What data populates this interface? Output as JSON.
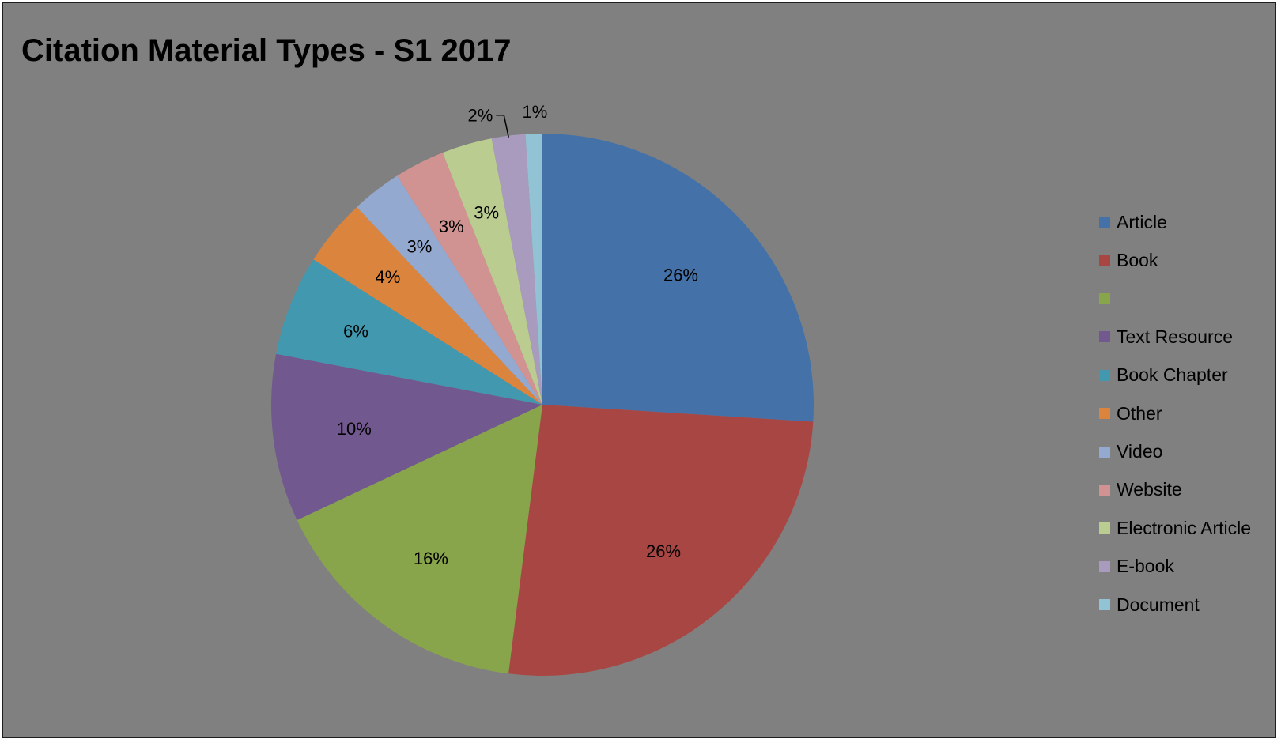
{
  "chart_data": {
    "type": "pie",
    "title": "Citation Material Types - S1 2017",
    "legend_position": "right",
    "start_angle": "12 o'clock, clockwise",
    "slices": [
      {
        "name": "Article",
        "value": 26,
        "label": "26%",
        "color": "#4472A8"
      },
      {
        "name": "Book",
        "value": 26,
        "label": "26%",
        "color": "#A84644"
      },
      {
        "name": "",
        "value": 16,
        "label": "16%",
        "color": "#88A54B"
      },
      {
        "name": "Text Resource",
        "value": 10,
        "label": "10%",
        "color": "#71588F"
      },
      {
        "name": "Book Chapter",
        "value": 6,
        "label": "6%",
        "color": "#4198AF"
      },
      {
        "name": "Other",
        "value": 4,
        "label": "4%",
        "color": "#DB843D"
      },
      {
        "name": "Video",
        "value": 3,
        "label": "3%",
        "color": "#93A9D0"
      },
      {
        "name": "Website",
        "value": 3,
        "label": "3%",
        "color": "#D09392"
      },
      {
        "name": "Electronic Article",
        "value": 3,
        "label": "3%",
        "color": "#BACC90"
      },
      {
        "name": "E-book",
        "value": 2,
        "label": "2%",
        "color": "#A99BBD"
      },
      {
        "name": "Document",
        "value": 1,
        "label": "1%",
        "color": "#92C3D4"
      }
    ]
  }
}
